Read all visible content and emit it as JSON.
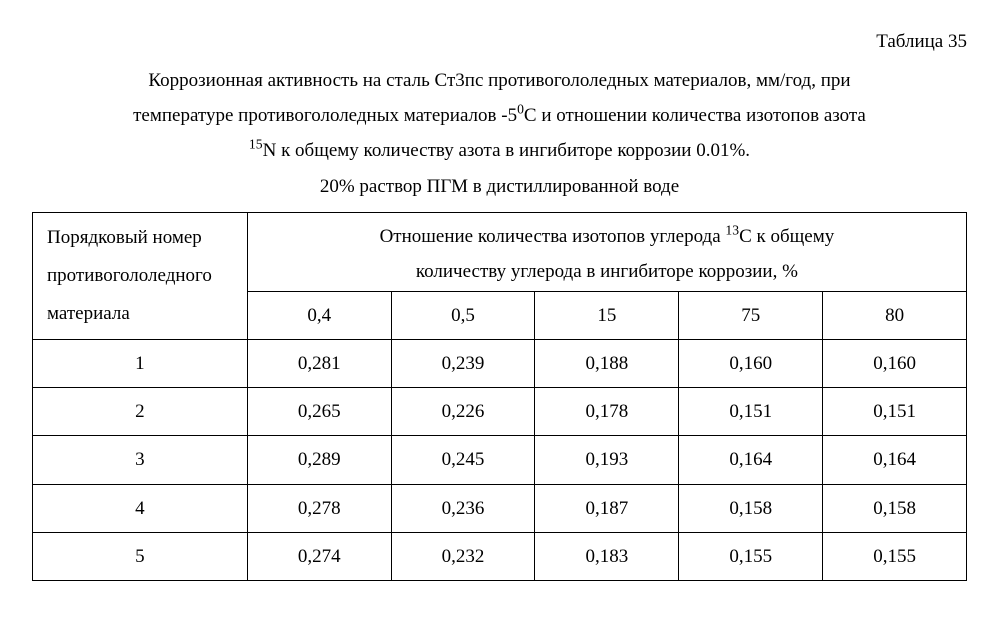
{
  "table_label": "Таблица 35",
  "caption": {
    "line1_pre": "Коррозионная активность на сталь Ст3пс противогололедных материалов, мм/год, при",
    "line2_pre": "температуре противогололедных материалов -5",
    "line2_sup": "0",
    "line2_post": "С и отношении количества изотопов азота",
    "line3_sup": "15",
    "line3_post": "N  к общему количеству азота в ингибиторе коррозии 0.01%.",
    "line4": "20% раствор ПГМ в дистиллированной воде"
  },
  "header": {
    "rowhead_l1": "Порядковый номер",
    "rowhead_l2": "противогололедного",
    "rowhead_l3": "материала",
    "colgroup_l1_pre": "Отношение количества изотопов углерода ",
    "colgroup_l1_sup": "13",
    "colgroup_l1_post": "С к общему",
    "colgroup_l2": "количеству углерода в ингибиторе коррозии, %"
  },
  "columns": [
    "0,4",
    "0,5",
    "15",
    "75",
    "80"
  ],
  "rows": [
    {
      "n": "1",
      "v": [
        "0,281",
        "0,239",
        "0,188",
        "0,160",
        "0,160"
      ]
    },
    {
      "n": "2",
      "v": [
        "0,265",
        "0,226",
        "0,178",
        "0,151",
        "0,151"
      ]
    },
    {
      "n": "3",
      "v": [
        "0,289",
        "0,245",
        "0,193",
        "0,164",
        "0,164"
      ]
    },
    {
      "n": "4",
      "v": [
        "0,278",
        "0,236",
        "0,187",
        "0,158",
        "0,158"
      ]
    },
    {
      "n": "5",
      "v": [
        "0,274",
        "0,232",
        "0,183",
        "0,155",
        "0,155"
      ]
    }
  ],
  "layout": {
    "col0_width_pct": 23,
    "data_col_width_pct": 15.4
  }
}
